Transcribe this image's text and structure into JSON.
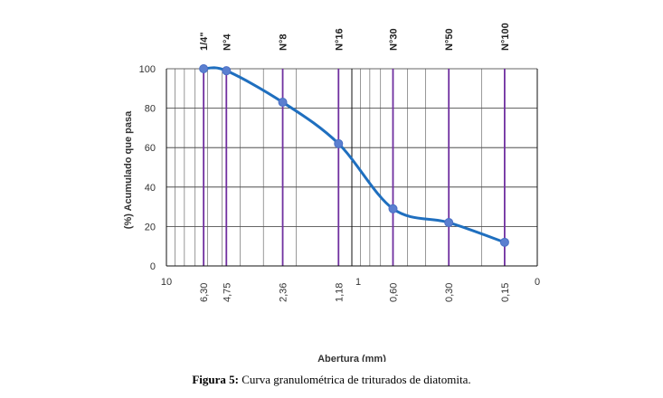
{
  "chart_data": {
    "type": "line",
    "ylabel": "(%) Acumulado que pasa",
    "xlabel": "Abertura (mm)",
    "x_scale": "log, reversed",
    "xlim": [
      10,
      0.1
    ],
    "ylim": [
      0,
      100
    ],
    "y_ticks": [
      0,
      20,
      40,
      60,
      80,
      100
    ],
    "x_edge_labels": [
      {
        "value": 10,
        "label": "10"
      },
      {
        "value": 1,
        "label": "1"
      },
      {
        "value": 0.1,
        "label": "0"
      }
    ],
    "sieves": [
      {
        "name": "1/4\"",
        "opening": 6.3,
        "opening_label": "6,30"
      },
      {
        "name": "N°4",
        "opening": 4.75,
        "opening_label": "4,75"
      },
      {
        "name": "N°8",
        "opening": 2.36,
        "opening_label": "2,36"
      },
      {
        "name": "N°16",
        "opening": 1.18,
        "opening_label": "1,18"
      },
      {
        "name": "N°30",
        "opening": 0.6,
        "opening_label": "0,60"
      },
      {
        "name": "N°50",
        "opening": 0.3,
        "opening_label": "0,30"
      },
      {
        "name": "N°100",
        "opening": 0.15,
        "opening_label": "0,15"
      }
    ],
    "series": [
      {
        "x": [
          6.3,
          4.75,
          2.36,
          1.18,
          0.6,
          0.3,
          0.15
        ],
        "y": [
          100,
          99,
          83,
          62,
          29,
          22,
          12
        ]
      }
    ],
    "grid": true,
    "legend": "none",
    "colors": {
      "line": "#1f6fbf",
      "marker": "#5b7fd0",
      "sieve_line": "#7030a0",
      "grid": "#333333"
    }
  },
  "caption": {
    "label": "Figura 5:",
    "text": " Curva granulométrica de triturados de diatomita."
  }
}
